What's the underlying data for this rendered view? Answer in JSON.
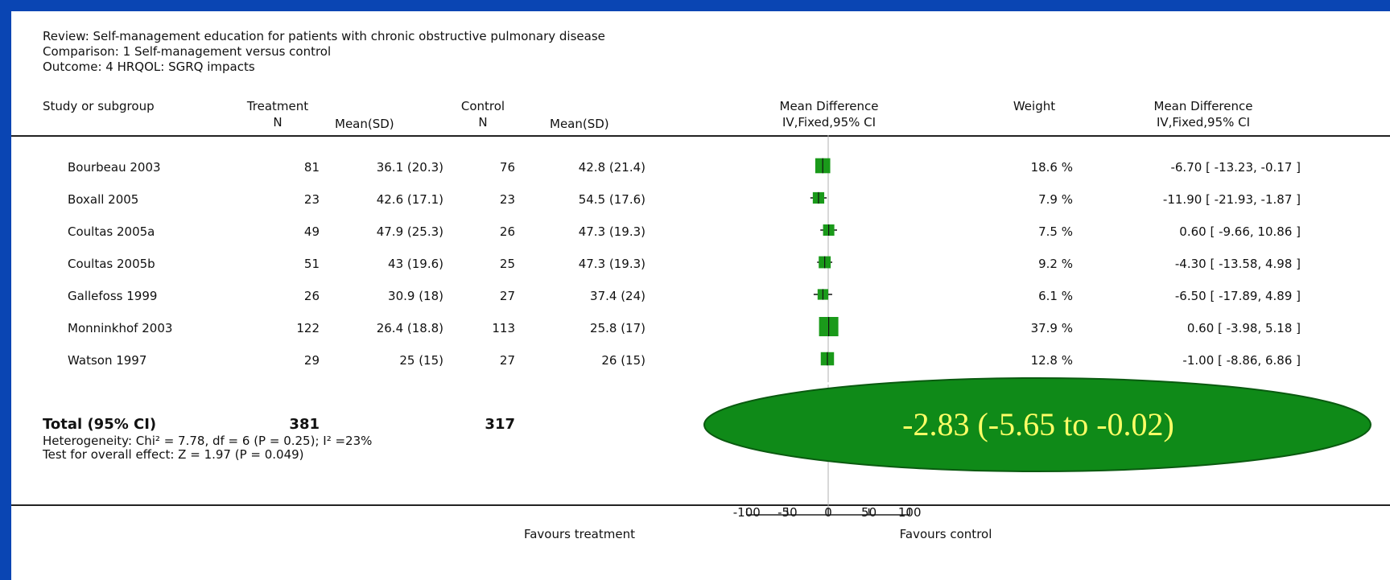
{
  "header": {
    "review": "Review:  Self-management education for patients with chronic obstructive pulmonary disease",
    "comparison": "Comparison:  1 Self-management versus control",
    "outcome": "Outcome:  4 HRQOL: SGRQ impacts"
  },
  "columns": {
    "study": "Study or subgroup",
    "treatment": "Treatment",
    "control": "Control",
    "n": "N",
    "mean_sd": "Mean(SD)",
    "md": "Mean Difference",
    "method": "IV,Fixed,95% CI",
    "weight": "Weight"
  },
  "rows": [
    {
      "study": "Bourbeau 2003",
      "t_n": "81",
      "t_mean": "36.1 (20.3)",
      "c_n": "76",
      "c_mean": "42.8 (21.4)",
      "weight": "18.6 %",
      "md": "-6.70 [ -13.23, -0.17 ]"
    },
    {
      "study": "Boxall 2005",
      "t_n": "23",
      "t_mean": "42.6 (17.1)",
      "c_n": "23",
      "c_mean": "54.5 (17.6)",
      "weight": "7.9 %",
      "md": "-11.90 [ -21.93, -1.87 ]"
    },
    {
      "study": "Coultas 2005a",
      "t_n": "49",
      "t_mean": "47.9 (25.3)",
      "c_n": "26",
      "c_mean": "47.3 (19.3)",
      "weight": "7.5 %",
      "md": "0.60 [ -9.66, 10.86 ]"
    },
    {
      "study": "Coultas 2005b",
      "t_n": "51",
      "t_mean": "43 (19.6)",
      "c_n": "25",
      "c_mean": "47.3 (19.3)",
      "weight": "9.2 %",
      "md": "-4.30 [ -13.58, 4.98 ]"
    },
    {
      "study": "Gallefoss 1999",
      "t_n": "26",
      "t_mean": "30.9 (18)",
      "c_n": "27",
      "c_mean": "37.4 (24)",
      "weight": "6.1 %",
      "md": "-6.50 [ -17.89, 4.89 ]"
    },
    {
      "study": "Monninkhof 2003",
      "t_n": "122",
      "t_mean": "26.4 (18.8)",
      "c_n": "113",
      "c_mean": "25.8 (17)",
      "weight": "37.9 %",
      "md": "0.60 [ -3.98, 5.18 ]"
    },
    {
      "study": "Watson 1997",
      "t_n": "29",
      "t_mean": "25 (15)",
      "c_n": "27",
      "c_mean": "26 (15)",
      "weight": "12.8 %",
      "md": "-1.00 [ -8.86, 6.86 ]"
    }
  ],
  "total": {
    "label": "Total (95% CI)",
    "t_n": "381",
    "c_n": "317",
    "heterogeneity": "Heterogeneity: Chi² = 7.78, df = 6 (P = 0.25); I² =23%",
    "overall": "Test for overall effect: Z = 1.97 (P = 0.049)"
  },
  "axis": {
    "favours_left": "Favours treatment",
    "favours_right": "Favours control"
  },
  "callout": {
    "text": "-2.83 (-5.65 to -0.02)",
    "fill": "#0f8a18",
    "text_color": "#ffff66"
  },
  "chart_data": {
    "type": "forest",
    "xlim": [
      -100,
      100
    ],
    "ticks": [
      -100,
      -50,
      0,
      50,
      100
    ],
    "points": [
      {
        "study": "Bourbeau 2003",
        "md": -6.7,
        "lo": -13.23,
        "hi": -0.17,
        "weight": 18.6
      },
      {
        "study": "Boxall 2005",
        "md": -11.9,
        "lo": -21.93,
        "hi": -1.87,
        "weight": 7.9
      },
      {
        "study": "Coultas 2005a",
        "md": 0.6,
        "lo": -9.66,
        "hi": 10.86,
        "weight": 7.5
      },
      {
        "study": "Coultas 2005b",
        "md": -4.3,
        "lo": -13.58,
        "hi": 4.98,
        "weight": 9.2
      },
      {
        "study": "Gallefoss 1999",
        "md": -6.5,
        "lo": -17.89,
        "hi": 4.89,
        "weight": 6.1
      },
      {
        "study": "Monninkhof 2003",
        "md": 0.6,
        "lo": -3.98,
        "hi": 5.18,
        "weight": 37.9
      },
      {
        "study": "Watson 1997",
        "md": -1.0,
        "lo": -8.86,
        "hi": 6.86,
        "weight": 12.8
      }
    ],
    "marker_color": "#1a9a1a"
  }
}
